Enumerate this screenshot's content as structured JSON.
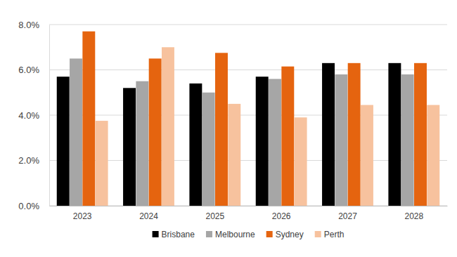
{
  "chart_data": {
    "type": "bar",
    "categories": [
      "2023",
      "2024",
      "2025",
      "2026",
      "2027",
      "2028"
    ],
    "series": [
      {
        "name": "Brisbane",
        "color": "#000000",
        "values": [
          5.7,
          5.2,
          5.4,
          5.7,
          6.3,
          6.3
        ]
      },
      {
        "name": "Melbourne",
        "color": "#a6a6a6",
        "values": [
          6.5,
          5.5,
          5.0,
          5.6,
          5.8,
          5.8
        ]
      },
      {
        "name": "Sydney",
        "color": "#e5640f",
        "values": [
          7.7,
          6.5,
          6.75,
          6.15,
          6.3,
          6.3
        ]
      },
      {
        "name": "Perth",
        "color": "#f7c29e",
        "values": [
          3.75,
          7.0,
          4.5,
          3.9,
          4.45,
          4.45
        ]
      }
    ],
    "ylim": [
      0,
      8
    ],
    "yticks": [
      {
        "value": 0,
        "label": "0.0%"
      },
      {
        "value": 2,
        "label": "2.0%"
      },
      {
        "value": 4,
        "label": "4.0%"
      },
      {
        "value": 6,
        "label": "6.0%"
      },
      {
        "value": 8,
        "label": "8.0%"
      }
    ],
    "grid": true,
    "legend": "bottom"
  }
}
